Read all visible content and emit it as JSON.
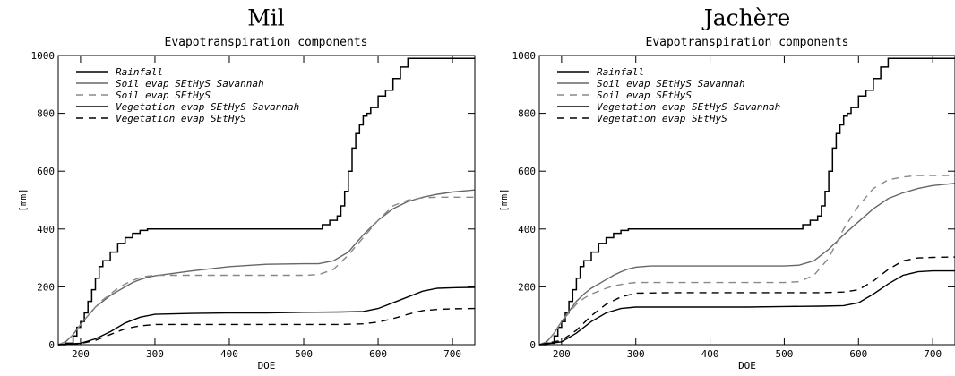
{
  "chart_data": [
    {
      "type": "line",
      "panel_title": "Mil",
      "title": "Evapotranspiration components",
      "xlabel": "DOE",
      "ylabel": "[mm]",
      "xlim": [
        170,
        730
      ],
      "ylim": [
        0,
        1000
      ],
      "xticks": [
        200,
        300,
        400,
        500,
        600,
        700
      ],
      "yticks": [
        0,
        200,
        400,
        600,
        800,
        1000
      ],
      "legend": "top-left",
      "series": [
        {
          "name": "Rainfall",
          "color": "#000000",
          "dash": "solid",
          "step": true,
          "x": [
            170,
            180,
            190,
            195,
            200,
            205,
            210,
            215,
            220,
            225,
            230,
            240,
            250,
            260,
            270,
            280,
            290,
            300,
            400,
            520,
            525,
            535,
            545,
            550,
            555,
            560,
            565,
            570,
            575,
            580,
            585,
            590,
            600,
            610,
            620,
            630,
            640,
            650,
            730
          ],
          "y": [
            0,
            5,
            30,
            60,
            80,
            110,
            150,
            190,
            230,
            270,
            290,
            320,
            350,
            370,
            385,
            395,
            400,
            400,
            400,
            400,
            415,
            430,
            445,
            480,
            530,
            600,
            680,
            730,
            760,
            790,
            800,
            820,
            860,
            880,
            920,
            960,
            990,
            990,
            990
          ]
        },
        {
          "name": "Soil evap SEtHyS Savannah",
          "color": "#666666",
          "dash": "solid",
          "step": false,
          "x": [
            170,
            180,
            190,
            200,
            210,
            220,
            230,
            240,
            250,
            260,
            270,
            280,
            290,
            300,
            350,
            400,
            450,
            500,
            520,
            540,
            560,
            580,
            600,
            620,
            640,
            660,
            680,
            700,
            730
          ],
          "y": [
            0,
            10,
            35,
            70,
            100,
            130,
            150,
            170,
            185,
            200,
            215,
            225,
            233,
            238,
            255,
            270,
            278,
            280,
            280,
            290,
            320,
            380,
            430,
            470,
            495,
            510,
            520,
            528,
            535
          ]
        },
        {
          "name": "Soil evap SEtHyS",
          "color": "#888888",
          "dash": "8,6",
          "step": false,
          "x": [
            170,
            180,
            190,
            200,
            210,
            220,
            230,
            240,
            250,
            260,
            270,
            280,
            290,
            300,
            350,
            400,
            450,
            500,
            520,
            540,
            560,
            580,
            600,
            620,
            640,
            660,
            680,
            700,
            730
          ],
          "y": [
            0,
            10,
            35,
            70,
            100,
            130,
            155,
            175,
            195,
            210,
            222,
            232,
            237,
            240,
            240,
            240,
            240,
            240,
            242,
            260,
            310,
            370,
            430,
            480,
            500,
            508,
            510,
            510,
            510
          ]
        },
        {
          "name": "Vegetation evap SEtHyS Savannah",
          "color": "#000000",
          "dash": "solid",
          "step": false,
          "x": [
            170,
            200,
            220,
            240,
            260,
            280,
            300,
            350,
            400,
            450,
            500,
            550,
            580,
            600,
            620,
            640,
            660,
            680,
            700,
            730
          ],
          "y": [
            0,
            5,
            20,
            45,
            75,
            95,
            105,
            108,
            110,
            110,
            112,
            113,
            115,
            125,
            145,
            165,
            185,
            195,
            197,
            198
          ]
        },
        {
          "name": "Vegetation evap SEtHyS",
          "color": "#000000",
          "dash": "8,6",
          "step": false,
          "x": [
            170,
            200,
            220,
            240,
            260,
            280,
            300,
            350,
            400,
            450,
            500,
            550,
            580,
            600,
            620,
            640,
            660,
            680,
            700,
            730
          ],
          "y": [
            0,
            4,
            15,
            35,
            55,
            65,
            70,
            70,
            70,
            70,
            70,
            70,
            72,
            78,
            90,
            105,
            118,
            122,
            124,
            125
          ]
        }
      ]
    },
    {
      "type": "line",
      "panel_title": "Jachère",
      "title": "Evapotranspiration components",
      "xlabel": "DOE",
      "ylabel": "[mm]",
      "xlim": [
        170,
        730
      ],
      "ylim": [
        0,
        1000
      ],
      "xticks": [
        200,
        300,
        400,
        500,
        600,
        700
      ],
      "yticks": [
        0,
        200,
        400,
        600,
        800,
        1000
      ],
      "legend": "top-left",
      "series": [
        {
          "name": "Rainfall",
          "color": "#000000",
          "dash": "solid",
          "step": true,
          "x": [
            170,
            180,
            190,
            195,
            200,
            205,
            210,
            215,
            220,
            225,
            230,
            240,
            250,
            260,
            270,
            280,
            290,
            300,
            400,
            520,
            525,
            535,
            545,
            550,
            555,
            560,
            565,
            570,
            575,
            580,
            585,
            590,
            600,
            610,
            620,
            630,
            640,
            650,
            730
          ],
          "y": [
            0,
            5,
            30,
            60,
            80,
            110,
            150,
            190,
            230,
            270,
            290,
            320,
            350,
            370,
            385,
            395,
            400,
            400,
            400,
            400,
            415,
            430,
            445,
            480,
            530,
            600,
            680,
            730,
            760,
            790,
            800,
            820,
            860,
            880,
            920,
            960,
            990,
            990,
            990
          ]
        },
        {
          "name": "Soil evap SEtHyS Savannah",
          "color": "#666666",
          "dash": "solid",
          "step": false,
          "x": [
            170,
            180,
            190,
            200,
            210,
            220,
            230,
            240,
            250,
            260,
            270,
            280,
            290,
            300,
            320,
            340,
            400,
            450,
            500,
            520,
            540,
            560,
            580,
            600,
            620,
            640,
            660,
            680,
            700,
            730
          ],
          "y": [
            0,
            10,
            40,
            80,
            115,
            150,
            175,
            195,
            210,
            225,
            240,
            252,
            262,
            268,
            272,
            272,
            272,
            272,
            272,
            275,
            290,
            330,
            380,
            425,
            470,
            505,
            525,
            540,
            550,
            558
          ]
        },
        {
          "name": "Soil evap SEtHyS",
          "color": "#888888",
          "dash": "8,6",
          "step": false,
          "x": [
            170,
            180,
            190,
            200,
            210,
            220,
            230,
            240,
            250,
            260,
            270,
            280,
            290,
            300,
            350,
            400,
            450,
            500,
            520,
            540,
            560,
            580,
            600,
            620,
            640,
            660,
            680,
            700,
            730
          ],
          "y": [
            0,
            10,
            40,
            80,
            110,
            140,
            160,
            175,
            185,
            195,
            203,
            208,
            212,
            215,
            215,
            215,
            215,
            215,
            218,
            240,
            300,
            400,
            480,
            540,
            570,
            580,
            585,
            585,
            585
          ]
        },
        {
          "name": "Vegetation evap SEtHyS Savannah",
          "color": "#000000",
          "dash": "solid",
          "step": false,
          "x": [
            170,
            200,
            220,
            240,
            260,
            280,
            300,
            350,
            400,
            450,
            500,
            550,
            580,
            600,
            620,
            640,
            660,
            680,
            700,
            730
          ],
          "y": [
            0,
            10,
            40,
            80,
            110,
            125,
            130,
            130,
            130,
            130,
            132,
            133,
            135,
            145,
            175,
            210,
            240,
            252,
            255,
            255
          ]
        },
        {
          "name": "Vegetation evap SEtHyS",
          "color": "#000000",
          "dash": "8,6",
          "step": false,
          "x": [
            170,
            200,
            220,
            240,
            260,
            280,
            300,
            350,
            400,
            450,
            500,
            550,
            580,
            600,
            620,
            640,
            660,
            680,
            700,
            730
          ],
          "y": [
            0,
            15,
            50,
            100,
            140,
            165,
            178,
            180,
            180,
            180,
            180,
            180,
            182,
            190,
            220,
            260,
            290,
            300,
            302,
            303
          ]
        }
      ]
    }
  ]
}
